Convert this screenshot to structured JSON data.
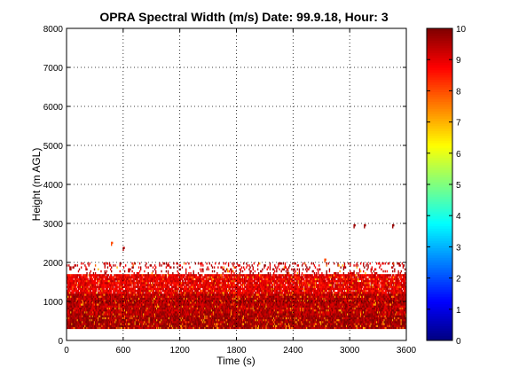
{
  "chart_data": {
    "type": "heatmap",
    "title": "OPRA Spectral Width (m/s)  Date: 99.9.18, Hour: 3",
    "xlabel": "Time (s)",
    "ylabel": "Height (m AGL)",
    "xlim": [
      0,
      3600
    ],
    "ylim": [
      0,
      8000
    ],
    "x_ticks": [
      "0",
      "600",
      "1200",
      "1800",
      "2400",
      "3000",
      "3600"
    ],
    "y_ticks": [
      "0",
      "1000",
      "2000",
      "3000",
      "4000",
      "5000",
      "6000",
      "7000",
      "8000"
    ],
    "grid": true,
    "colorbar": {
      "range": [
        0,
        10
      ],
      "ticks": [
        "0",
        "1",
        "2",
        "3",
        "4",
        "5",
        "6",
        "7",
        "8",
        "9",
        "10"
      ],
      "colormap": "jet"
    },
    "layers": [
      {
        "height_range": [
          300,
          650
        ],
        "typical_value": 9.7
      },
      {
        "height_range": [
          650,
          1200
        ],
        "typical_value": 9.5
      },
      {
        "height_range": [
          1200,
          1700
        ],
        "typical_value": 9.0
      },
      {
        "height_range": [
          1700,
          2000
        ],
        "typical_value": 9.3,
        "sparse": true
      }
    ],
    "isolated_echoes": [
      {
        "time": 470,
        "height": 2480,
        "value": 8.0
      },
      {
        "time": 595,
        "height": 2350,
        "value": 9.5
      },
      {
        "time": 2730,
        "height": 2050,
        "value": 8.0
      },
      {
        "time": 3040,
        "height": 2930,
        "value": 9.7
      },
      {
        "time": 3150,
        "height": 2930,
        "value": 9.7
      },
      {
        "time": 3450,
        "height": 2930,
        "value": 9.8
      }
    ]
  }
}
